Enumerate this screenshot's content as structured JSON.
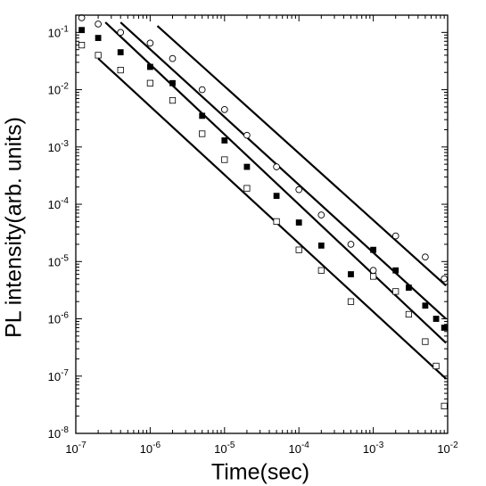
{
  "chart_data": {
    "type": "scatter",
    "title": "",
    "xlabel": "Time(sec)",
    "ylabel": "PL intensity(arb. units)",
    "xscale": "log",
    "yscale": "log",
    "xlim": [
      1e-07,
      0.01
    ],
    "ylim": [
      1e-08,
      0.2
    ],
    "grid": false,
    "legend": "none",
    "x_ticks": [
      {
        "value": 1e-07,
        "base": "10",
        "exp": "-7"
      },
      {
        "value": 1e-06,
        "base": "10",
        "exp": "-6"
      },
      {
        "value": 1e-05,
        "base": "10",
        "exp": "-5"
      },
      {
        "value": 0.0001,
        "base": "10",
        "exp": "-4"
      },
      {
        "value": 0.001,
        "base": "10",
        "exp": "-3"
      },
      {
        "value": 0.01,
        "base": "10",
        "exp": "-2"
      }
    ],
    "y_ticks": [
      {
        "value": 1e-08,
        "base": "10",
        "exp": "-8"
      },
      {
        "value": 1e-07,
        "base": "10",
        "exp": "-7"
      },
      {
        "value": 1e-06,
        "base": "10",
        "exp": "-6"
      },
      {
        "value": 1e-05,
        "base": "10",
        "exp": "-5"
      },
      {
        "value": 0.0001,
        "base": "10",
        "exp": "-4"
      },
      {
        "value": 0.001,
        "base": "10",
        "exp": "-3"
      },
      {
        "value": 0.01,
        "base": "10",
        "exp": "-2"
      },
      {
        "value": 0.1,
        "base": "10",
        "exp": "-1"
      }
    ],
    "series": [
      {
        "marker": "open-circle",
        "x": [
          1.2e-07,
          2e-07,
          4e-07,
          1e-06,
          2e-06,
          5e-06,
          1e-05,
          2e-05,
          5e-05,
          0.0001,
          0.0002,
          0.0005,
          0.001,
          0.002,
          0.005,
          0.009
        ],
        "y": [
          0.18,
          0.14,
          0.1,
          0.065,
          0.035,
          0.01,
          0.0045,
          0.0016,
          0.00045,
          0.00018,
          6.5e-05,
          2e-05,
          7e-06,
          2.8e-05,
          1.2e-05,
          5e-06
        ]
      },
      {
        "marker": "filled-square",
        "x": [
          1.2e-07,
          2e-07,
          4e-07,
          1e-06,
          2e-06,
          5e-06,
          1e-05,
          2e-05,
          5e-05,
          0.0001,
          0.0002,
          0.0005,
          0.001,
          0.002,
          0.003,
          0.005,
          0.007,
          0.009
        ],
        "y": [
          0.11,
          0.08,
          0.045,
          0.025,
          0.013,
          0.0035,
          0.0013,
          0.00045,
          0.00014,
          4.8e-05,
          1.9e-05,
          6e-06,
          1.6e-05,
          7e-06,
          3.5e-06,
          1.7e-06,
          1e-06,
          7e-07
        ]
      },
      {
        "marker": "open-square",
        "x": [
          1.2e-07,
          2e-07,
          4e-07,
          1e-06,
          2e-06,
          5e-06,
          1e-05,
          2e-05,
          5e-05,
          0.0001,
          0.0002,
          0.0005,
          0.001,
          0.002,
          0.003,
          0.005,
          0.007,
          0.009
        ],
        "y": [
          0.06,
          0.04,
          0.022,
          0.013,
          0.0065,
          0.0017,
          0.0006,
          0.00019,
          5e-05,
          1.6e-05,
          7e-06,
          2e-06,
          5.5e-06,
          3e-06,
          1.2e-06,
          4e-07,
          1.5e-07,
          3e-08
        ]
      }
    ],
    "fit_lines": [
      {
        "x": [
          1.25e-06,
          0.0095
        ],
        "y": [
          0.13,
          3.8e-06
        ]
      },
      {
        "x": [
          4e-07,
          0.0095
        ],
        "y": [
          0.15,
          1e-06
        ]
      },
      {
        "x": [
          2.5e-07,
          0.0095
        ],
        "y": [
          0.15,
          3.8e-07
        ]
      },
      {
        "x": [
          2e-07,
          0.0095
        ],
        "y": [
          0.035,
          9e-08
        ]
      }
    ]
  }
}
